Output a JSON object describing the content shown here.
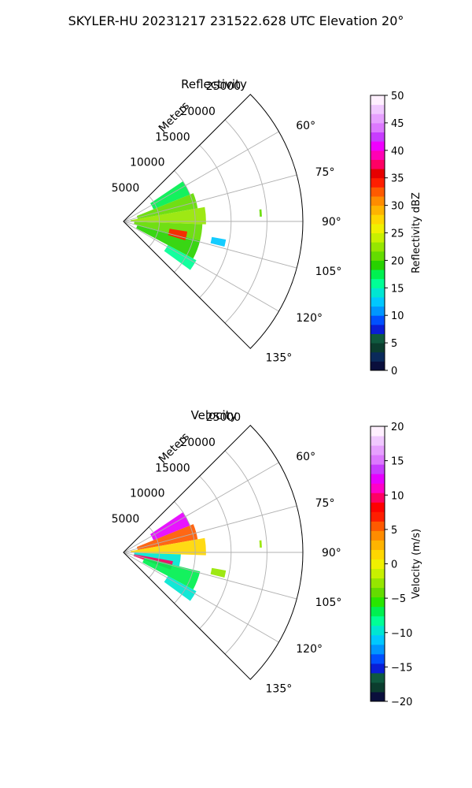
{
  "figure_title": "SKYLER-HU  20231217  231522.628 UTC Elevation 20°",
  "chart_data": [
    {
      "type": "polar_sector",
      "title": "Reflectivity",
      "range_axis_label": "Meters",
      "range_ticks": [
        5000,
        10000,
        15000,
        20000,
        25000
      ],
      "range_tick_labels": [
        "5000",
        "10000",
        "15000",
        "20000",
        "25000"
      ],
      "range_limit": 25000,
      "azimuth_range_deg": [
        45,
        135
      ],
      "azimuth_ticks": [
        60,
        75,
        90,
        105,
        120,
        135
      ],
      "azimuth_tick_labels": [
        "60°",
        "75°",
        "90°",
        "105°",
        "120°",
        "135°"
      ],
      "colorbar": {
        "label": "Reflectivity dBZ",
        "min": 0,
        "max": 50,
        "ticks": [
          0,
          5,
          10,
          15,
          20,
          25,
          30,
          35,
          40,
          45,
          50
        ],
        "tick_labels": [
          "0",
          "5",
          "10",
          "15",
          "20",
          "25",
          "30",
          "35",
          "40",
          "45",
          "50"
        ],
        "colors": [
          "#0a0f3c",
          "#0a2a5a",
          "#0b3d2e",
          "#0f5a3f",
          "#0a1ed6",
          "#0050ff",
          "#0096ff",
          "#00c8ff",
          "#00e6d2",
          "#00ff96",
          "#00f050",
          "#28d200",
          "#64dc00",
          "#96e600",
          "#c8f000",
          "#f0f000",
          "#ffd700",
          "#ffb400",
          "#ff8c00",
          "#ff5a00",
          "#ff1e00",
          "#e60000",
          "#ff0064",
          "#ff00b4",
          "#f000ff",
          "#c83cff",
          "#dc78ff",
          "#e6a0ff",
          "#f0c8ff",
          "#fff0ff"
        ]
      },
      "echoes": [
        {
          "az": [
            56,
            68
          ],
          "r": [
            4500,
            10000
          ],
          "value": 17
        },
        {
          "az": [
            68,
            80
          ],
          "r": [
            2000,
            10500
          ],
          "value": 20
        },
        {
          "az": [
            80,
            92
          ],
          "r": [
            1000,
            11500
          ],
          "value": 22
        },
        {
          "az": [
            92,
            104
          ],
          "r": [
            1500,
            11000
          ],
          "value": 21
        },
        {
          "az": [
            104,
            118
          ],
          "r": [
            2000,
            11000
          ],
          "value": 19
        },
        {
          "az": [
            118,
            126
          ],
          "r": [
            7000,
            11500
          ],
          "value": 16
        },
        {
          "az": [
            99,
            107
          ],
          "r": [
            6500,
            9000
          ],
          "value": 34
        },
        {
          "az": [
            100,
            104
          ],
          "r": [
            12500,
            14500
          ],
          "value": 12
        },
        {
          "az": [
            85,
            88
          ],
          "r": [
            19000,
            19300
          ],
          "value": 20
        }
      ]
    },
    {
      "type": "polar_sector",
      "title": "Velocity",
      "range_axis_label": "Meters",
      "range_ticks": [
        5000,
        10000,
        15000,
        20000,
        25000
      ],
      "range_tick_labels": [
        "5000",
        "10000",
        "15000",
        "20000",
        "25000"
      ],
      "range_limit": 25000,
      "azimuth_range_deg": [
        45,
        135
      ],
      "azimuth_ticks": [
        60,
        75,
        90,
        105,
        120,
        135
      ],
      "azimuth_tick_labels": [
        "60°",
        "75°",
        "90°",
        "105°",
        "120°",
        "135°"
      ],
      "colorbar": {
        "label": "Velocity (m/s)",
        "min": -20,
        "max": 20,
        "ticks": [
          -20,
          -15,
          -10,
          -5,
          0,
          5,
          10,
          15,
          20
        ],
        "tick_labels": [
          "−20",
          "−15",
          "−10",
          "−5",
          "0",
          "5",
          "10",
          "15",
          "20"
        ],
        "colors": [
          "#0a0f3c",
          "#0b3d2e",
          "#0f5a3f",
          "#0a1ed6",
          "#0050ff",
          "#0096ff",
          "#00c8ff",
          "#00e6d2",
          "#00ff96",
          "#00f050",
          "#28e600",
          "#64dc00",
          "#96e600",
          "#c8f000",
          "#f0f000",
          "#ffd700",
          "#ffb400",
          "#ff8c00",
          "#ff5a00",
          "#ff1e00",
          "#ff0000",
          "#ff0064",
          "#ff00c8",
          "#e600ff",
          "#c83cff",
          "#dc78ff",
          "#e6a0ff",
          "#f0c8ff",
          "#fff0ff"
        ]
      },
      "echoes": [
        {
          "az": [
            56,
            68
          ],
          "r": [
            4500,
            10000
          ],
          "value": 12
        },
        {
          "az": [
            68,
            80
          ],
          "r": [
            2000,
            10500
          ],
          "value": 6
        },
        {
          "az": [
            80,
            92
          ],
          "r": [
            1000,
            11500
          ],
          "value": 1
        },
        {
          "az": [
            92,
            104
          ],
          "r": [
            1500,
            8000
          ],
          "value": -9
        },
        {
          "az": [
            100,
            110
          ],
          "r": [
            1500,
            7000
          ],
          "value": 10
        },
        {
          "az": [
            104,
            118
          ],
          "r": [
            3000,
            11000
          ],
          "value": -7
        },
        {
          "az": [
            118,
            126
          ],
          "r": [
            7000,
            11500
          ],
          "value": -9
        },
        {
          "az": [
            100,
            104
          ],
          "r": [
            12500,
            14500
          ],
          "value": -3
        },
        {
          "az": [
            85,
            88
          ],
          "r": [
            19000,
            19300
          ],
          "value": -3
        }
      ]
    }
  ]
}
